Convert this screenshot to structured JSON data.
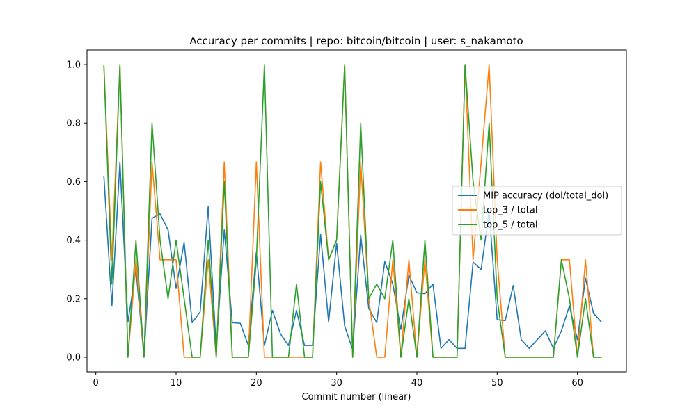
{
  "chart_data": {
    "type": "line",
    "title": "Accuracy per commits | repo: bitcoin/bitcoin | user: s_nakamoto",
    "xlabel": "Commit number (linear)",
    "ylabel": "",
    "xlim": [
      -1.1,
      66.1
    ],
    "ylim": [
      -0.05,
      1.05
    ],
    "xticks": [
      0,
      10,
      20,
      30,
      40,
      50,
      60
    ],
    "yticks": [
      0.0,
      0.2,
      0.4,
      0.6,
      0.8,
      1.0
    ],
    "grid": false,
    "legend_position": "center-right",
    "x": [
      1,
      2,
      3,
      4,
      5,
      6,
      7,
      8,
      9,
      10,
      11,
      12,
      13,
      14,
      15,
      16,
      17,
      18,
      19,
      20,
      21,
      22,
      23,
      24,
      25,
      26,
      27,
      28,
      29,
      30,
      31,
      32,
      33,
      34,
      35,
      36,
      37,
      38,
      39,
      40,
      41,
      42,
      43,
      44,
      45,
      46,
      47,
      48,
      49,
      50,
      51,
      52,
      53,
      54,
      55,
      56,
      57,
      58,
      59,
      60,
      61,
      62,
      63
    ],
    "series": [
      {
        "name": "MIP accuracy (doi/total_doi)",
        "color": "#1f77b4",
        "values": [
          0.62,
          0.175,
          0.667,
          0.12,
          0.3,
          0.0,
          0.475,
          0.49,
          0.435,
          0.235,
          0.393,
          0.118,
          0.155,
          0.515,
          0.03,
          0.435,
          0.118,
          0.116,
          0.04,
          0.36,
          0.04,
          0.16,
          0.08,
          0.04,
          0.16,
          0.04,
          0.04,
          0.42,
          0.12,
          0.39,
          0.107,
          0.025,
          0.418,
          0.167,
          0.118,
          0.327,
          0.25,
          0.095,
          0.28,
          0.22,
          0.217,
          0.25,
          0.03,
          0.06,
          0.03,
          0.03,
          0.325,
          0.3,
          0.5,
          0.128,
          0.125,
          0.245,
          0.06,
          0.03,
          0.06,
          0.09,
          0.03,
          0.09,
          0.175,
          0.06,
          0.27,
          0.15,
          0.12
        ]
      },
      {
        "name": "top_3 / total",
        "color": "#ff7f0e",
        "values": [
          1.0,
          0.333,
          1.0,
          0.0,
          0.333,
          0.0,
          0.667,
          0.333,
          0.333,
          0.333,
          0.0,
          0.0,
          0.0,
          0.333,
          0.0,
          0.667,
          0.0,
          0.0,
          0.0,
          0.667,
          0.0,
          0.0,
          0.0,
          0.0,
          0.0,
          0.0,
          0.0,
          0.667,
          0.333,
          0.4,
          1.0,
          0.0,
          0.667,
          0.2,
          0.0,
          0.0,
          0.333,
          0.0,
          0.333,
          0.0,
          0.333,
          0.0,
          0.0,
          0.0,
          0.0,
          1.0,
          0.333,
          0.667,
          1.0,
          0.333,
          0.0,
          0.0,
          0.0,
          0.0,
          0.0,
          0.0,
          0.0,
          0.333,
          0.333,
          0.0,
          0.333,
          0.0,
          0.0
        ]
      },
      {
        "name": "top_5 / total",
        "color": "#2ca02c",
        "values": [
          1.0,
          0.25,
          1.0,
          0.0,
          0.4,
          0.0,
          0.8,
          0.4,
          0.2,
          0.4,
          0.2,
          0.0,
          0.0,
          0.4,
          0.0,
          0.6,
          0.0,
          0.0,
          0.0,
          0.333,
          1.0,
          0.0,
          0.0,
          0.0,
          0.25,
          0.0,
          0.0,
          0.6,
          0.333,
          0.4,
          1.0,
          0.0,
          0.8,
          0.2,
          0.25,
          0.2,
          0.4,
          0.0,
          0.2,
          0.0,
          0.4,
          0.0,
          0.0,
          0.0,
          0.0,
          1.0,
          0.6,
          0.4,
          0.8,
          0.2,
          0.0,
          0.0,
          0.0,
          0.0,
          0.0,
          0.0,
          0.0,
          0.333,
          0.2,
          0.0,
          0.2,
          0.0,
          0.0
        ]
      }
    ]
  }
}
